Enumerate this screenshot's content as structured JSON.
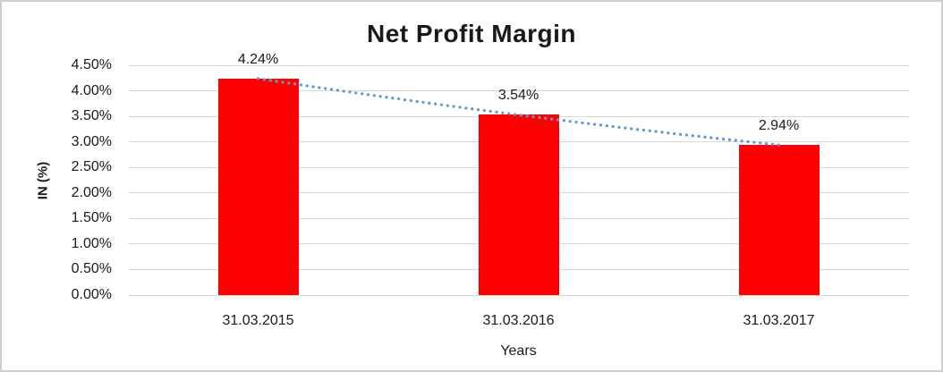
{
  "chart_data": {
    "type": "bar",
    "title": "Net Profit Margin",
    "categories": [
      "31.03.2015",
      "31.03.2016",
      "31.03.2017"
    ],
    "values": [
      4.24,
      3.54,
      2.94
    ],
    "data_labels": [
      "4.24%",
      "3.54%",
      "2.94%"
    ],
    "xlabel": "Years",
    "ylabel": "IN (%)",
    "ylim": [
      0,
      4.5
    ],
    "ytick_step": 0.5,
    "yticks": [
      "4.50%",
      "4.00%",
      "3.50%",
      "3.00%",
      "2.50%",
      "2.00%",
      "1.50%",
      "1.00%",
      "0.50%",
      "0.00%"
    ],
    "legend": "none",
    "grid": true,
    "trendline": {
      "style": "dotted",
      "across_values": [
        4.24,
        2.94
      ]
    },
    "colors": {
      "bar": "#FF0000",
      "trendline_dot": "#5B9BD5",
      "gridline": "#D9D9D9",
      "text": "#1A1A1A",
      "background": "#FFFFFF",
      "border": "#CFCFCF"
    }
  }
}
